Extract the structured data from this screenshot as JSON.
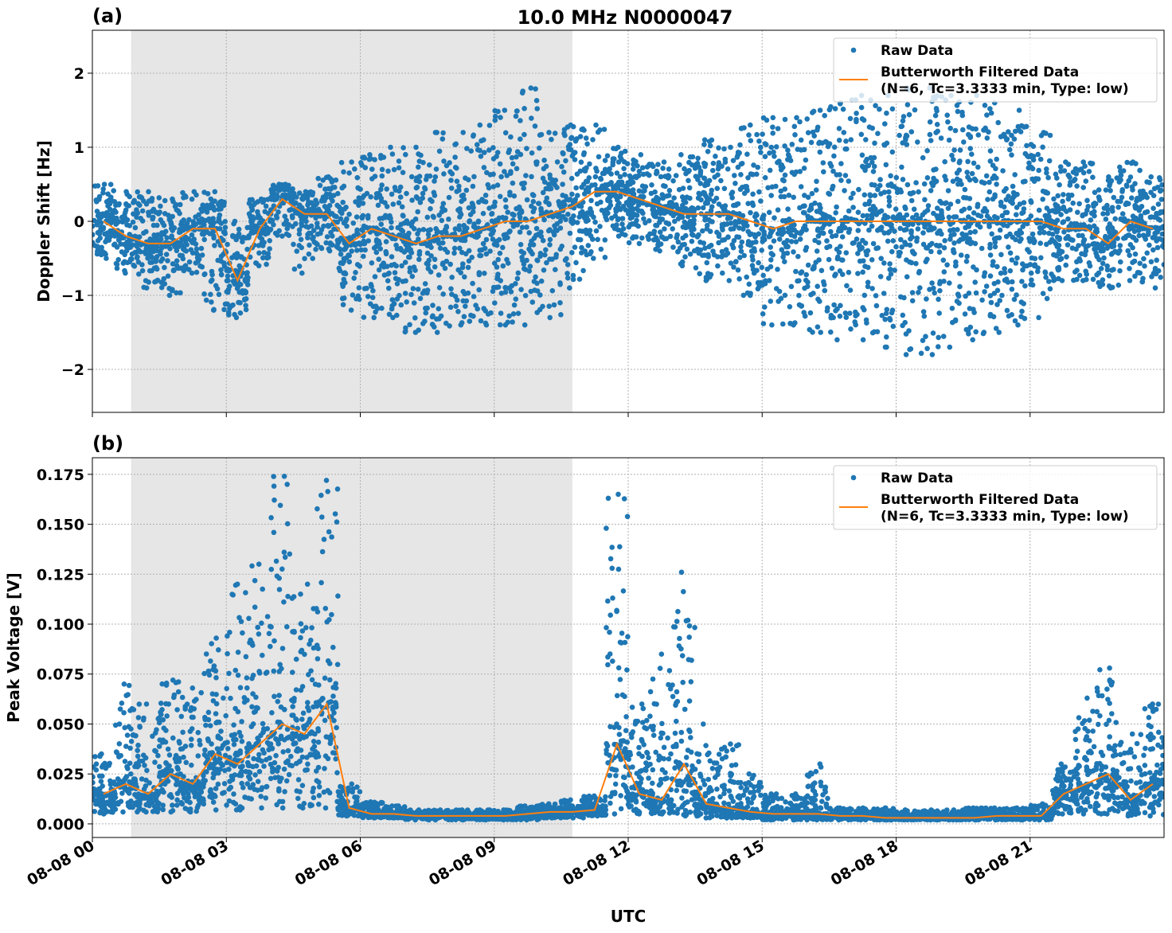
{
  "chart_data": {
    "title": "10.0 MHz N0000047",
    "xlabel": "UTC",
    "x_tick_labels": [
      "08-08 00",
      "08-08 03",
      "08-08 06",
      "08-08 09",
      "08-08 12",
      "08-08 15",
      "08-08 18",
      "08-08 21"
    ],
    "x_ticks": [
      "00:00",
      "03:00",
      "06:00",
      "09:00",
      "12:00",
      "15:00",
      "18:00",
      "21:00"
    ],
    "xlim": [
      "00:00",
      "24:00"
    ],
    "shaded_interval": [
      "00:52",
      "10:45"
    ],
    "shade_color": "#e6e6e6",
    "grid": true,
    "raw_color": "#1f77b4",
    "filtered_color": "#ff7f0e",
    "x": [
      "00:15",
      "00:45",
      "01:15",
      "01:45",
      "02:15",
      "02:45",
      "03:15",
      "03:45",
      "04:15",
      "04:45",
      "05:15",
      "05:45",
      "06:15",
      "06:45",
      "07:15",
      "07:45",
      "08:15",
      "08:45",
      "09:15",
      "09:45",
      "10:15",
      "10:45",
      "11:15",
      "11:45",
      "12:15",
      "12:45",
      "13:15",
      "13:45",
      "14:15",
      "14:45",
      "15:15",
      "15:45",
      "16:15",
      "16:45",
      "17:15",
      "17:45",
      "18:15",
      "18:45",
      "19:15",
      "19:45",
      "20:15",
      "20:45",
      "21:15",
      "21:45",
      "22:15",
      "22:45",
      "23:15",
      "23:45"
    ],
    "panels": [
      {
        "label": "(a)",
        "type": "scatter+line",
        "ylabel": "Doppler Shift [Hz]",
        "ylim": [
          -2.58,
          2.58
        ],
        "y_ticks": [
          -2,
          -1,
          0,
          1,
          2
        ],
        "y_tick_labels": [
          "−2",
          "−1",
          "0",
          "1",
          "2"
        ],
        "legend": {
          "position": "top-right",
          "raw": "Raw Data",
          "filtered_line1": "Butterworth Filtered Data",
          "filtered_line2": "(N=6, Tc=3.3333 min, Type: low)"
        },
        "filtered": [
          0.0,
          -0.2,
          -0.3,
          -0.3,
          -0.1,
          -0.1,
          -0.8,
          -0.1,
          0.3,
          0.1,
          0.1,
          -0.3,
          -0.1,
          -0.2,
          -0.3,
          -0.2,
          -0.2,
          -0.1,
          0.0,
          0.0,
          0.1,
          0.2,
          0.4,
          0.4,
          0.3,
          0.2,
          0.1,
          0.1,
          0.1,
          0.0,
          -0.1,
          0.0,
          0.0,
          0.0,
          0.0,
          0.0,
          0.0,
          0.0,
          0.0,
          0.0,
          0.0,
          0.0,
          0.0,
          -0.1,
          -0.1,
          -0.3,
          0.0,
          -0.1
        ],
        "raw_min": [
          -0.5,
          -0.7,
          -0.9,
          -1.0,
          -0.7,
          -1.2,
          -1.3,
          -0.6,
          -0.2,
          -0.7,
          -0.4,
          -1.2,
          -1.3,
          -1.3,
          -1.5,
          -1.5,
          -1.4,
          -1.4,
          -1.4,
          -1.4,
          -1.3,
          -0.9,
          -0.5,
          -0.2,
          -0.3,
          -0.4,
          -0.6,
          -0.8,
          -0.8,
          -1.0,
          -1.4,
          -1.4,
          -1.5,
          -1.6,
          -1.6,
          -1.7,
          -1.8,
          -1.8,
          -1.7,
          -1.6,
          -1.5,
          -1.4,
          -1.3,
          -0.8,
          -0.8,
          -0.9,
          -0.8,
          -0.9
        ],
        "raw_max": [
          0.5,
          0.4,
          0.4,
          0.3,
          0.4,
          0.4,
          0.0,
          0.3,
          0.5,
          0.4,
          0.6,
          0.8,
          0.9,
          1.0,
          1.0,
          1.2,
          1.2,
          1.3,
          1.5,
          1.8,
          1.2,
          1.3,
          1.3,
          1.0,
          0.9,
          0.8,
          0.9,
          1.1,
          1.0,
          1.3,
          1.4,
          1.4,
          1.5,
          1.6,
          1.7,
          1.7,
          1.8,
          1.8,
          1.7,
          1.7,
          1.6,
          1.5,
          1.2,
          0.8,
          0.8,
          0.6,
          0.8,
          0.6
        ]
      },
      {
        "label": "(b)",
        "type": "scatter+line",
        "ylabel": "Peak Voltage [V]",
        "ylim": [
          -0.0068,
          0.1833
        ],
        "y_ticks": [
          0,
          0.025,
          0.05,
          0.075,
          0.1,
          0.125,
          0.15,
          0.175
        ],
        "y_tick_labels": [
          "0.000",
          "0.025",
          "0.050",
          "0.075",
          "0.100",
          "0.125",
          "0.150",
          "0.175"
        ],
        "legend": {
          "position": "top-right",
          "raw": "Raw Data",
          "filtered_line1": "Butterworth Filtered Data",
          "filtered_line2": "(N=6, Tc=3.3333 min, Type: low)"
        },
        "filtered": [
          0.015,
          0.02,
          0.015,
          0.025,
          0.02,
          0.035,
          0.03,
          0.04,
          0.05,
          0.045,
          0.06,
          0.008,
          0.005,
          0.005,
          0.004,
          0.004,
          0.004,
          0.004,
          0.004,
          0.005,
          0.006,
          0.006,
          0.007,
          0.04,
          0.015,
          0.012,
          0.03,
          0.01,
          0.008,
          0.006,
          0.005,
          0.005,
          0.005,
          0.004,
          0.004,
          0.003,
          0.003,
          0.003,
          0.003,
          0.003,
          0.004,
          0.004,
          0.004,
          0.015,
          0.02,
          0.025,
          0.012,
          0.02
        ],
        "raw_min": [
          0.005,
          0.006,
          0.006,
          0.006,
          0.006,
          0.007,
          0.007,
          0.008,
          0.008,
          0.008,
          0.008,
          0.004,
          0.003,
          0.003,
          0.002,
          0.002,
          0.002,
          0.002,
          0.002,
          0.002,
          0.003,
          0.003,
          0.004,
          0.005,
          0.005,
          0.005,
          0.004,
          0.003,
          0.003,
          0.003,
          0.002,
          0.002,
          0.002,
          0.002,
          0.002,
          0.002,
          0.002,
          0.002,
          0.002,
          0.002,
          0.002,
          0.002,
          0.002,
          0.005,
          0.005,
          0.005,
          0.004,
          0.004
        ],
        "raw_max": [
          0.035,
          0.07,
          0.06,
          0.072,
          0.068,
          0.093,
          0.12,
          0.13,
          0.174,
          0.12,
          0.172,
          0.02,
          0.011,
          0.009,
          0.007,
          0.007,
          0.007,
          0.007,
          0.007,
          0.009,
          0.01,
          0.012,
          0.014,
          0.165,
          0.06,
          0.085,
          0.126,
          0.05,
          0.04,
          0.025,
          0.015,
          0.015,
          0.03,
          0.008,
          0.008,
          0.008,
          0.007,
          0.007,
          0.007,
          0.008,
          0.008,
          0.008,
          0.01,
          0.03,
          0.063,
          0.078,
          0.045,
          0.06
        ]
      }
    ]
  }
}
